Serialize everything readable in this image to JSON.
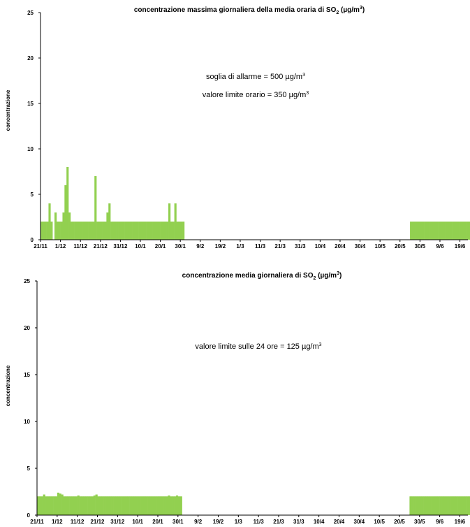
{
  "chart_data": [
    {
      "type": "bar",
      "title": "concentrazione massima giornaliera della media oraria di SO",
      "title_sub": "2",
      "title_tail": " (µg/m",
      "title_sup": "3",
      "title_end": ")",
      "ylabel": "concentrazione",
      "ylim": [
        0,
        25
      ],
      "yticks": [
        "0",
        "5",
        "10",
        "15",
        "20",
        "25"
      ],
      "xticks": [
        "21/11",
        "1/12",
        "11/12",
        "21/12",
        "31/12",
        "10/1",
        "20/1",
        "30/1",
        "9/2",
        "19/2",
        "1/3",
        "11/3",
        "21/3",
        "31/3",
        "10/4",
        "20/4",
        "30/4",
        "10/5",
        "20/5",
        "30/5",
        "9/6",
        "19/6"
      ],
      "annotations": [
        {
          "text": "soglia di allarme = 500 µg/m",
          "sup": "3"
        },
        {
          "text": "valore limite orario = 350 µg/m",
          "sup": "3"
        }
      ],
      "bar_color": "#92d050",
      "series": [
        {
          "segments": [
            {
              "start_day": 0,
              "values": [
                2,
                2,
                2,
                2,
                4,
                2,
                0,
                3,
                2,
                2,
                2,
                3,
                6,
                8,
                3,
                2,
                2,
                2,
                2,
                2,
                2,
                2,
                2,
                2,
                2,
                2,
                2,
                7,
                2,
                2,
                2,
                2,
                2,
                3,
                4,
                2,
                2,
                2,
                2,
                2,
                2,
                2,
                2,
                2,
                2,
                2,
                2,
                2,
                2,
                2,
                2,
                2,
                2,
                2,
                2,
                2,
                2,
                2,
                2,
                2,
                2,
                2,
                2,
                2,
                4,
                2,
                2,
                4,
                2,
                2,
                2,
                2
              ]
            },
            {
              "start_day": 185,
              "values": [
                2,
                2,
                2,
                2,
                2,
                2,
                2,
                2,
                2,
                2,
                2,
                2,
                2,
                2,
                2,
                2,
                2,
                2,
                2,
                2,
                2,
                2,
                2,
                2,
                2,
                2,
                2,
                2,
                2,
                2,
                2,
                2,
                2,
                2,
                2,
                2,
                2,
                2,
                2,
                2,
                2,
                2,
                2,
                2,
                2,
                2,
                2,
                2,
                2,
                2,
                2,
                2,
                2,
                2,
                2,
                2,
                2,
                2,
                2,
                2,
                2,
                2,
                2,
                2,
                2,
                2,
                2,
                2,
                2,
                2,
                2,
                2,
                2,
                2,
                2,
                2,
                2,
                2,
                2,
                2
              ]
            }
          ]
        }
      ]
    },
    {
      "type": "bar",
      "title": "concentrazione media giornaliera di SO",
      "title_sub": "2",
      "title_tail": " (µg/m",
      "title_sup": "3",
      "title_end": ")",
      "ylabel": "concentrazione",
      "ylim": [
        0,
        25
      ],
      "yticks": [
        "0",
        "5",
        "10",
        "15",
        "20",
        "25"
      ],
      "xticks": [
        "21/11",
        "1/12",
        "11/12",
        "21/12",
        "31/12",
        "10/1",
        "20/1",
        "30/1",
        "9/2",
        "19/2",
        "1/3",
        "11/3",
        "21/3",
        "31/3",
        "10/4",
        "20/4",
        "30/4",
        "10/5",
        "20/5",
        "30/5",
        "9/6",
        "19/6"
      ],
      "annotations": [
        {
          "text": "valore limite sulle 24 ore = 125 µg/m",
          "sup": "3"
        }
      ],
      "bar_color": "#92d050",
      "series": [
        {
          "segments": [
            {
              "start_day": 0,
              "values": [
                2,
                2,
                2,
                2.2,
                2,
                2,
                2,
                2,
                2,
                2,
                2.4,
                2.3,
                2.2,
                2,
                2,
                2,
                2,
                2,
                2,
                2,
                2.1,
                2,
                2,
                2,
                2,
                2,
                2,
                2,
                2.1,
                2.2,
                2,
                2,
                2,
                2,
                2,
                2,
                2,
                2,
                2,
                2,
                2,
                2,
                2,
                2,
                2,
                2,
                2,
                2,
                2,
                2,
                2,
                2,
                2,
                2,
                2,
                2,
                2,
                2,
                2,
                2,
                2,
                2,
                2,
                2,
                2,
                2.1,
                2,
                2,
                2,
                2.1,
                2,
                2
              ]
            },
            {
              "start_day": 185,
              "values": [
                2,
                2,
                2,
                2,
                2,
                2,
                2,
                2,
                2,
                2,
                2,
                2,
                2,
                2,
                2,
                2,
                2,
                2,
                2,
                2,
                2,
                2,
                2,
                2,
                2,
                2,
                2,
                2,
                2,
                2,
                2,
                2,
                2,
                2,
                2,
                2,
                2,
                2,
                2,
                2,
                2,
                2,
                2,
                2,
                2,
                2,
                2,
                2,
                2,
                2,
                2,
                2,
                2,
                2,
                2,
                2,
                2,
                2,
                2,
                2,
                2,
                2,
                2,
                2,
                2,
                2,
                2,
                2,
                2,
                2,
                2,
                2,
                2,
                2,
                2,
                2,
                2,
                2,
                2,
                2
              ]
            }
          ]
        }
      ]
    }
  ]
}
